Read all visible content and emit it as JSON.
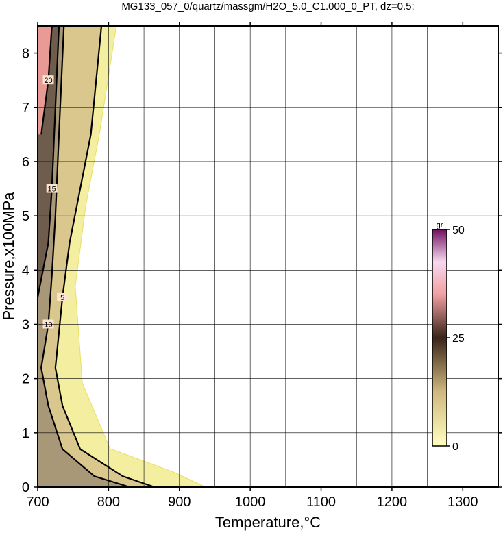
{
  "chart_data": {
    "type": "contour",
    "title": "MG133_057_0/quartz/massgm/H2O_5.0_C1.000_0_PT, dz=0.5:",
    "x_label": "Temperature,°C",
    "y_label": "Pressure,x100MPa",
    "xlim": [
      700,
      1350
    ],
    "ylim": [
      0,
      8.5
    ],
    "xticks": [
      700,
      800,
      900,
      1000,
      1100,
      1200,
      1300
    ],
    "yticks": [
      0,
      1,
      2,
      3,
      4,
      5,
      6,
      7,
      8
    ],
    "xgrid": [
      750,
      800,
      850,
      900,
      950,
      1000,
      1050,
      1100,
      1150,
      1200,
      1250,
      1300
    ],
    "grid": true,
    "contours": [
      {
        "level": 0,
        "color": "#f3eea0",
        "x": [
          937,
          893,
          802,
          763,
          753,
          768,
          787,
          811
        ],
        "y": [
          0,
          0.27,
          0.71,
          1.92,
          3.7,
          5.2,
          6.5,
          8.5
        ]
      },
      {
        "level": 5,
        "color": "#d9c78e",
        "x": [
          865,
          820,
          760,
          735,
          725,
          735,
          745,
          760,
          775,
          790
        ],
        "y": [
          0,
          0.2,
          0.7,
          1.5,
          2.2,
          3.5,
          4.5,
          5.5,
          6.5,
          8.5
        ]
      },
      {
        "level": 10,
        "color": "#a89878",
        "x": [
          830,
          780,
          735,
          715,
          705,
          715,
          720,
          725,
          730,
          737
        ],
        "y": [
          0,
          0.2,
          0.7,
          1.5,
          2.2,
          3.0,
          3.9,
          5.0,
          6.5,
          8.5
        ]
      },
      {
        "level": 15,
        "color": "#6e5c4c",
        "x": [
          700,
          715,
          720,
          725,
          730
        ],
        "y": [
          3.5,
          4.5,
          5.5,
          7.0,
          8.5
        ]
      },
      {
        "level": 20,
        "color": "#e89a94",
        "x": [
          705,
          715,
          720
        ],
        "y": [
          6.5,
          7.5,
          8.5
        ]
      }
    ],
    "colorbar": {
      "label": "gr",
      "lim": [
        0,
        50
      ],
      "ticks": [
        0,
        25,
        50
      ]
    }
  }
}
